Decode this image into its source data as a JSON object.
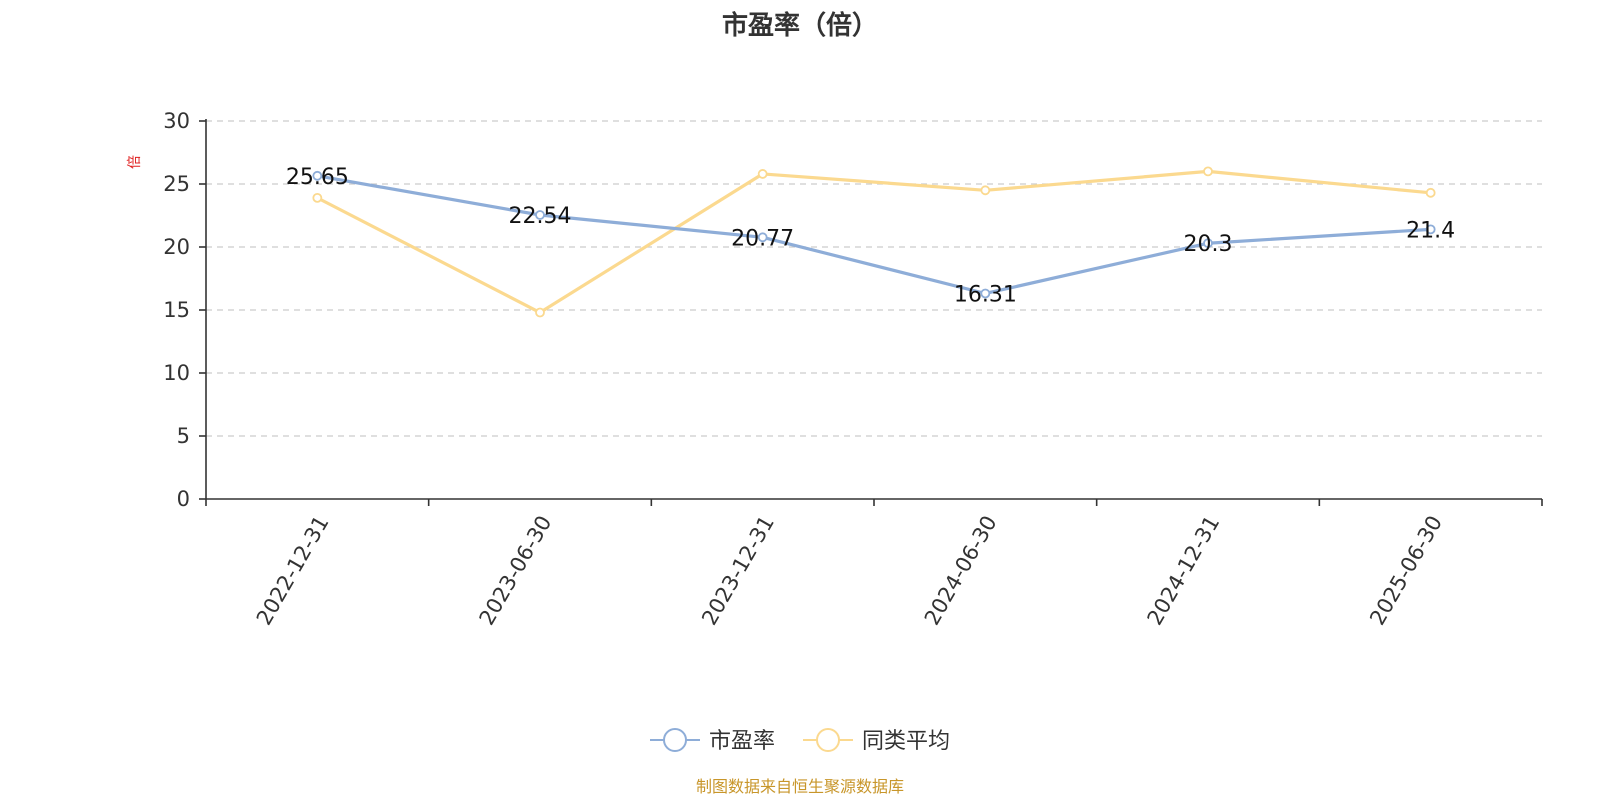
{
  "chart_data": {
    "type": "line",
    "title": "市盈率（倍）",
    "ylabel": "倍",
    "xlabel": "",
    "categories": [
      "2022-12-31",
      "2023-06-30",
      "2023-12-31",
      "2024-06-30",
      "2024-12-31",
      "2025-06-30"
    ],
    "ylim": [
      0,
      30
    ],
    "yticks": [
      0,
      5,
      10,
      15,
      20,
      25,
      30
    ],
    "grid": true,
    "legend_position": "bottom-center",
    "series": [
      {
        "name": "市盈率",
        "color": "#8eadd8",
        "values": [
          25.65,
          22.54,
          20.77,
          16.31,
          20.3,
          21.4
        ],
        "labels": [
          "25.65",
          "22.54",
          "20.77",
          "16.31",
          "20.3",
          "21.4"
        ]
      },
      {
        "name": "同类平均",
        "color": "#fbd98f",
        "values": [
          23.9,
          14.8,
          25.8,
          24.5,
          26.0,
          24.3
        ]
      }
    ],
    "source": "制图数据来自恒生聚源数据库"
  }
}
